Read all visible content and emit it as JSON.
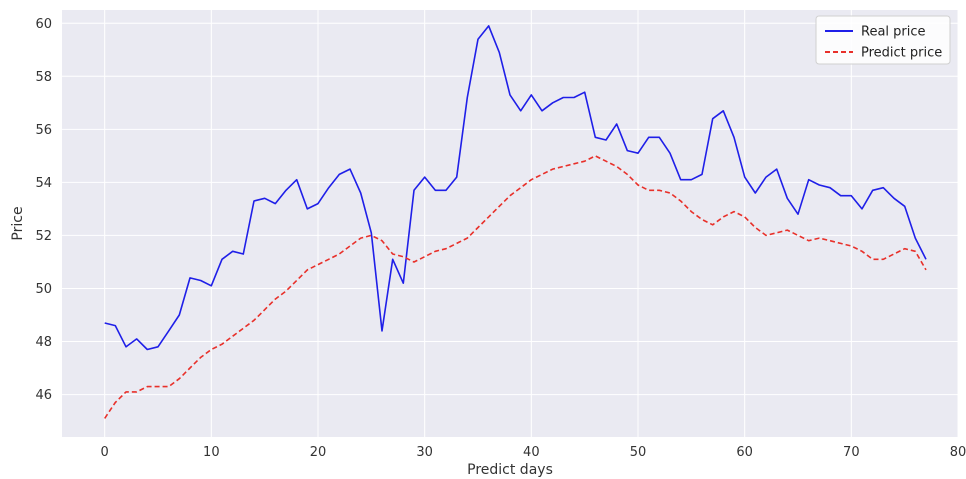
{
  "chart_data": {
    "type": "line",
    "title": "",
    "xlabel": "Predict days",
    "ylabel": "Price",
    "xlim": [
      -4,
      80
    ],
    "ylim": [
      44.4,
      60.5
    ],
    "xticks": [
      0,
      10,
      20,
      30,
      40,
      50,
      60,
      70,
      80
    ],
    "yticks": [
      46,
      48,
      50,
      52,
      54,
      56,
      58,
      60
    ],
    "grid": true,
    "legend_position": "top-right",
    "x": [
      0,
      1,
      2,
      3,
      4,
      5,
      6,
      7,
      8,
      9,
      10,
      11,
      12,
      13,
      14,
      15,
      16,
      17,
      18,
      19,
      20,
      21,
      22,
      23,
      24,
      25,
      26,
      27,
      28,
      29,
      30,
      31,
      32,
      33,
      34,
      35,
      36,
      37,
      38,
      39,
      40,
      41,
      42,
      43,
      44,
      45,
      46,
      47,
      48,
      49,
      50,
      51,
      52,
      53,
      54,
      55,
      56,
      57,
      58,
      59,
      60,
      61,
      62,
      63,
      64,
      65,
      66,
      67,
      68,
      69,
      70,
      71,
      72,
      73,
      74,
      75,
      76,
      77
    ],
    "series": [
      {
        "name": "Real price",
        "color": "#1f1fe8",
        "style": "solid",
        "values": [
          48.7,
          48.6,
          47.8,
          48.1,
          47.7,
          47.8,
          48.4,
          49.0,
          50.4,
          50.3,
          50.1,
          51.1,
          51.4,
          51.3,
          53.3,
          53.4,
          53.2,
          53.7,
          54.1,
          53.0,
          53.2,
          53.8,
          54.3,
          54.5,
          53.6,
          52.1,
          48.4,
          51.1,
          50.2,
          53.7,
          54.2,
          53.7,
          53.7,
          54.2,
          57.2,
          59.4,
          59.9,
          58.9,
          57.3,
          56.7,
          57.3,
          56.7,
          57.0,
          57.2,
          57.2,
          57.4,
          55.7,
          55.6,
          56.2,
          55.2,
          55.1,
          55.7,
          55.7,
          55.1,
          54.1,
          54.1,
          54.3,
          56.4,
          56.7,
          55.7,
          54.2,
          53.6,
          54.2,
          54.5,
          53.4,
          52.8,
          54.1,
          53.9,
          53.8,
          53.5,
          53.5,
          53.0,
          53.7,
          53.8,
          53.4,
          53.1,
          51.9,
          51.1
        ]
      },
      {
        "name": "Predict price",
        "color": "#e8302a",
        "style": "dashed",
        "values": [
          45.1,
          45.7,
          46.1,
          46.1,
          46.3,
          46.3,
          46.3,
          46.6,
          47.0,
          47.4,
          47.7,
          47.9,
          48.2,
          48.5,
          48.8,
          49.2,
          49.6,
          49.9,
          50.3,
          50.7,
          50.9,
          51.1,
          51.3,
          51.6,
          51.9,
          52.0,
          51.8,
          51.3,
          51.2,
          51.0,
          51.2,
          51.4,
          51.5,
          51.7,
          51.9,
          52.3,
          52.7,
          53.1,
          53.5,
          53.8,
          54.1,
          54.3,
          54.5,
          54.6,
          54.7,
          54.8,
          55.0,
          54.8,
          54.6,
          54.3,
          53.9,
          53.7,
          53.7,
          53.6,
          53.3,
          52.9,
          52.6,
          52.4,
          52.7,
          52.9,
          52.7,
          52.3,
          52.0,
          52.1,
          52.2,
          52.0,
          51.8,
          51.9,
          51.8,
          51.7,
          51.6,
          51.4,
          51.1,
          51.1,
          51.3,
          51.5,
          51.4,
          50.7
        ]
      }
    ]
  }
}
